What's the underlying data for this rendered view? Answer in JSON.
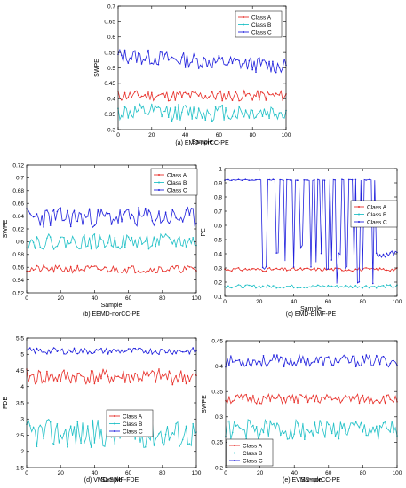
{
  "chart_data": [
    {
      "type": "line",
      "caption": "(a) EMD-norCC-PE",
      "xlabel": "Sample",
      "ylabel": "SWPE",
      "xlim": [
        0,
        100
      ],
      "ylim": [
        0.3,
        0.7
      ],
      "xticks": [
        0,
        20,
        40,
        60,
        80,
        100
      ],
      "yticks": [
        0.3,
        0.35,
        0.4,
        0.45,
        0.5,
        0.55,
        0.6,
        0.65,
        0.7
      ],
      "ytick_labels": [
        "0.3",
        "0.35",
        "0.4",
        "0.45",
        "0.5",
        "0.55",
        "0.6",
        "0.65",
        "0.7"
      ],
      "legend": "top-right",
      "series": [
        {
          "name": "Class A",
          "color": "#e8312b",
          "mean": 0.41,
          "amp": 0.018,
          "seed": 11
        },
        {
          "name": "Class B",
          "color": "#22c1c7",
          "mean": 0.355,
          "amp": 0.028,
          "seed": 12
        },
        {
          "name": "Class C",
          "color": "#2222dd",
          "mean": 0.54,
          "amp": 0.025,
          "seed": 13,
          "trend": -0.035
        }
      ]
    },
    {
      "type": "line",
      "caption": "(b) EEMD-norCC-PE",
      "xlabel": "Sample",
      "ylabel": "SWPE",
      "xlim": [
        0,
        100
      ],
      "ylim": [
        0.52,
        0.72
      ],
      "xticks": [
        0,
        20,
        40,
        60,
        80,
        100
      ],
      "yticks": [
        0.52,
        0.54,
        0.56,
        0.58,
        0.6,
        0.62,
        0.64,
        0.66,
        0.68,
        0.7,
        0.72
      ],
      "ytick_labels": [
        "0.52",
        "0.54",
        "0.56",
        "0.58",
        "0.6",
        "0.62",
        "0.64",
        "0.66",
        "0.68",
        "0.7",
        "0.72"
      ],
      "legend": "top-right",
      "series": [
        {
          "name": "Class A",
          "color": "#e8312b",
          "mean": 0.557,
          "amp": 0.006,
          "seed": 21
        },
        {
          "name": "Class B",
          "color": "#22c1c7",
          "mean": 0.6,
          "amp": 0.012,
          "seed": 22
        },
        {
          "name": "Class C",
          "color": "#2222dd",
          "mean": 0.638,
          "amp": 0.016,
          "seed": 23
        }
      ]
    },
    {
      "type": "line",
      "caption": "(c) EMD-EIMF-PE",
      "xlabel": "Sample",
      "ylabel": "PE",
      "xlim": [
        0,
        100
      ],
      "ylim": [
        0.1,
        1.0
      ],
      "xticks": [
        0,
        20,
        40,
        60,
        80,
        100
      ],
      "yticks": [
        0.1,
        0.2,
        0.3,
        0.4,
        0.5,
        0.6,
        0.7,
        0.8,
        0.9,
        1.0
      ],
      "ytick_labels": [
        "0.1",
        "0.2",
        "0.3",
        "0.4",
        "0.5",
        "0.6",
        "0.7",
        "0.8",
        "0.9",
        "1"
      ],
      "legend": "middle-right",
      "series": [
        {
          "name": "Class A",
          "color": "#e8312b",
          "mean": 0.29,
          "amp": 0.012,
          "seed": 31
        },
        {
          "name": "Class B",
          "color": "#22c1c7",
          "mean": 0.17,
          "amp": 0.012,
          "seed": 32
        },
        {
          "name": "Class C",
          "color": "#2222dd",
          "mean": 0.92,
          "amp": 0.004,
          "seed": 33,
          "jumps": [
            [
              22,
              0.3
            ],
            [
              23,
              0.3
            ],
            [
              24,
              0.3
            ],
            [
              30,
              0.4
            ],
            [
              31,
              0.4
            ],
            [
              35,
              0.35
            ],
            [
              40,
              0.3
            ],
            [
              44,
              0.45
            ],
            [
              45,
              0.45
            ],
            [
              50,
              0.3
            ],
            [
              53,
              0.35
            ],
            [
              56,
              0.4
            ],
            [
              59,
              0.3
            ],
            [
              60,
              0.3
            ],
            [
              62,
              0.35
            ],
            [
              65,
              0.2
            ],
            [
              66,
              0.4
            ],
            [
              67,
              0.4
            ],
            [
              70,
              0.3
            ],
            [
              71,
              0.3
            ],
            [
              75,
              0.35
            ],
            [
              77,
              0.2
            ],
            [
              78,
              0.2
            ],
            [
              80,
              0.3
            ],
            [
              86,
              0.2
            ],
            [
              88,
              0.4
            ],
            [
              89,
              0.38
            ],
            [
              90,
              0.4
            ],
            [
              91,
              0.38
            ],
            [
              92,
              0.4
            ],
            [
              93,
              0.38
            ],
            [
              94,
              0.4
            ],
            [
              95,
              0.38
            ],
            [
              96,
              0.4
            ],
            [
              97,
              0.42
            ],
            [
              98,
              0.4
            ],
            [
              99,
              0.42
            ],
            [
              100,
              0.4
            ]
          ]
        }
      ]
    },
    {
      "type": "line",
      "caption": "(d) VMD-SIMF-FDE",
      "xlabel": "Sample",
      "ylabel": "FDE",
      "xlim": [
        0,
        100
      ],
      "ylim": [
        1.5,
        5.5
      ],
      "xticks": [
        0,
        20,
        40,
        60,
        80,
        100
      ],
      "yticks": [
        1.5,
        2,
        2.5,
        3,
        3.5,
        4,
        4.5,
        5,
        5.5
      ],
      "ytick_labels": [
        "1.5",
        "2",
        "2.5",
        "3",
        "3.5",
        "4",
        "4.5",
        "5",
        "5.5"
      ],
      "legend": "middle-right",
      "series": [
        {
          "name": "Class A",
          "color": "#e8312b",
          "mean": 4.3,
          "amp": 0.25,
          "seed": 41
        },
        {
          "name": "Class B",
          "color": "#22c1c7",
          "mean": 2.55,
          "amp": 0.45,
          "seed": 42
        },
        {
          "name": "Class C",
          "color": "#2222dd",
          "mean": 5.1,
          "amp": 0.1,
          "seed": 43
        }
      ]
    },
    {
      "type": "line",
      "caption": "(e) EVMD-norCC-PE",
      "xlabel": "Sample",
      "ylabel": "SWPE",
      "xlim": [
        0,
        100
      ],
      "ylim": [
        0.2,
        0.45
      ],
      "xticks": [
        0,
        20,
        40,
        60,
        80,
        100
      ],
      "yticks": [
        0.2,
        0.25,
        0.3,
        0.35,
        0.4,
        0.45
      ],
      "ytick_labels": [
        "0.2",
        "0.25",
        "0.3",
        "0.35",
        "0.4",
        "0.45"
      ],
      "legend": "bottom-left",
      "series": [
        {
          "name": "Class A",
          "color": "#e8312b",
          "mean": 0.335,
          "amp": 0.01,
          "seed": 51
        },
        {
          "name": "Class B",
          "color": "#22c1c7",
          "mean": 0.275,
          "amp": 0.02,
          "seed": 52
        },
        {
          "name": "Class C",
          "color": "#2222dd",
          "mean": 0.41,
          "amp": 0.012,
          "seed": 53
        }
      ]
    }
  ]
}
